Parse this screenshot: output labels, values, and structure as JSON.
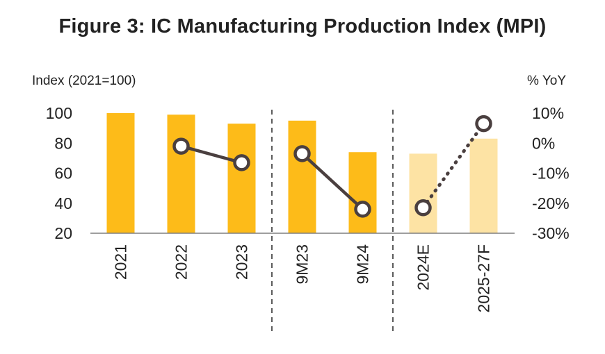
{
  "title": "Figure 3: IC Manufacturing Production Index (MPI)",
  "chart_data": {
    "type": "bar",
    "categories": [
      "2021",
      "2022",
      "2023",
      "9M23",
      "9M24",
      "2024E",
      "2025-27F"
    ],
    "bars": {
      "values": [
        100,
        99,
        93,
        95,
        74,
        73,
        83
      ],
      "estimated": [
        false,
        false,
        false,
        false,
        false,
        true,
        true
      ],
      "color_actual": "#FDBB19",
      "color_estimate": "#FDE3A4"
    },
    "yoy_line": {
      "values": [
        null,
        -1,
        -6.5,
        -3.5,
        -22,
        -21.5,
        6.5
      ],
      "solid_segments": [
        [
          1,
          2
        ],
        [
          3,
          4
        ]
      ],
      "dotted_segments": [
        [
          5,
          6
        ]
      ],
      "color": "#4A3F3F"
    },
    "y_left": {
      "label": "Index (2021=100)",
      "ylim": [
        20,
        100
      ],
      "ticks": [
        100,
        80,
        60,
        40,
        20
      ]
    },
    "y_right": {
      "label": "%  YoY",
      "ylim": [
        -30,
        10
      ],
      "ticks": [
        10,
        0,
        -10,
        -20,
        -30
      ],
      "tick_labels": [
        "10%",
        "0%",
        "-10%",
        "-20%",
        "-30%"
      ]
    },
    "dividers_after": [
      "2023",
      "9M24"
    ],
    "grid": false
  }
}
